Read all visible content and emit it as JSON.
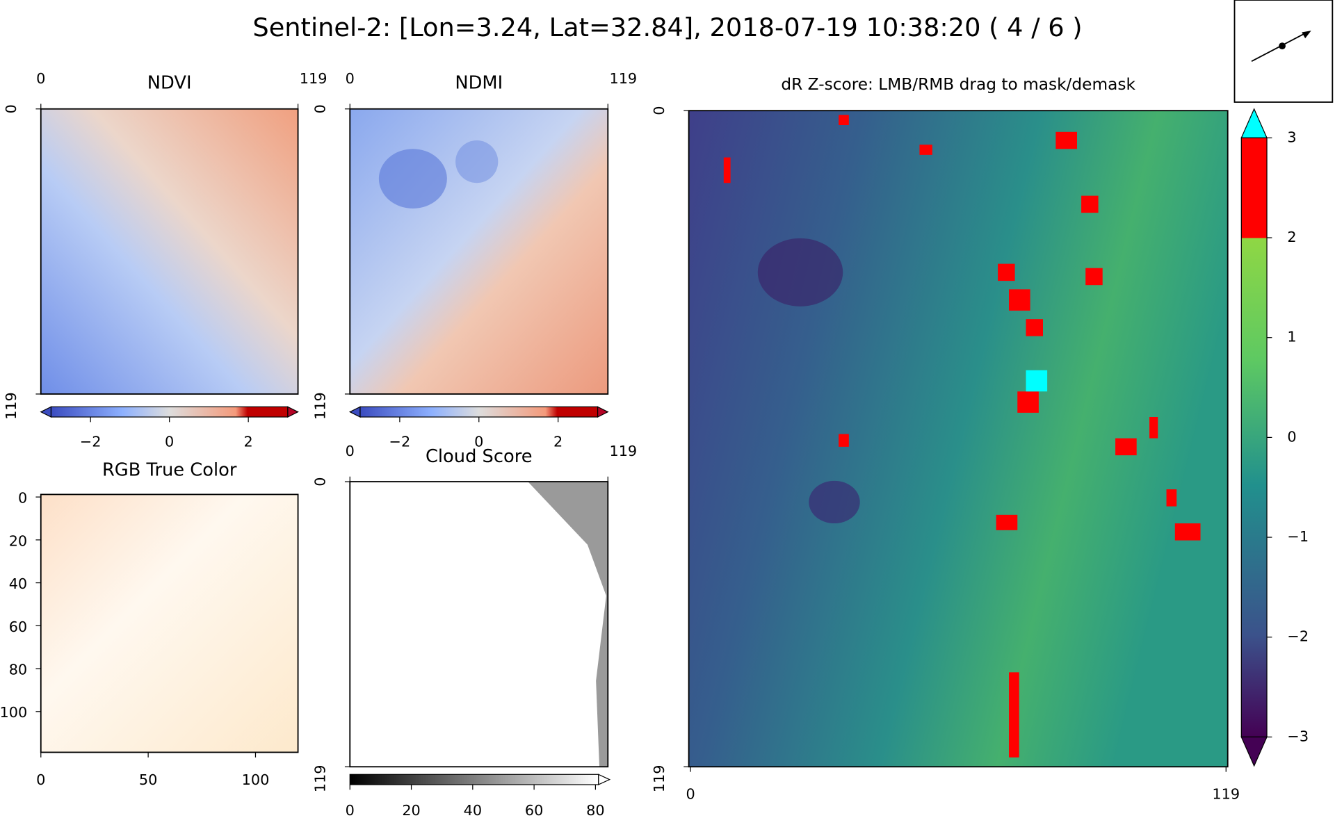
{
  "title": "Sentinel-2: [Lon=3.24, Lat=32.84], 2018-07-19 10:38:20 ( 4 / 6 )",
  "panels": [
    {
      "title": "NDVI",
      "xlim": [
        0,
        119
      ],
      "ylim": [
        0,
        119
      ],
      "xticks": [
        0,
        119
      ],
      "yticks": [
        0,
        119
      ],
      "clim": [
        -3,
        3
      ],
      "colorbar_ticks": [
        {
          "value": -2,
          "label": "−2"
        },
        0,
        2
      ]
    },
    {
      "title": "NDMI",
      "xlim": [
        0,
        119
      ],
      "ylim": [
        0,
        119
      ],
      "xticks": [
        0,
        119
      ],
      "yticks": [
        0,
        119
      ],
      "clim": [
        -3,
        3
      ],
      "colorbar_ticks": [
        {
          "value": -2,
          "label": "−2"
        },
        0,
        2
      ]
    },
    {
      "title": "RGB True Color",
      "xlim": [
        0,
        119
      ],
      "ylim": [
        0,
        119
      ],
      "xticks": [
        0,
        50,
        100
      ],
      "yticks": [
        0,
        20,
        40,
        60,
        80,
        100
      ]
    },
    {
      "title": "Cloud Score",
      "xlim": [
        0,
        119
      ],
      "ylim": [
        0,
        119
      ],
      "xticks": [
        0,
        119
      ],
      "yticks": [
        0,
        119
      ],
      "clim": [
        0,
        81
      ],
      "colorbar_ticks": [
        0,
        20,
        40,
        60,
        80
      ]
    },
    {
      "title": "dR Z-score: LMB/RMB drag to mask/demask",
      "xlim": [
        0,
        119
      ],
      "ylim": [
        0,
        119
      ],
      "xticks": [
        0,
        119
      ],
      "yticks": [
        0,
        119
      ],
      "clim": [
        -3,
        3
      ],
      "colorbar_ticks": [
        3,
        2,
        1,
        0,
        {
          "value": -1,
          "label": "−1"
        },
        {
          "value": -2,
          "label": "−2"
        },
        {
          "value": -3,
          "label": "−3"
        }
      ]
    }
  ]
}
